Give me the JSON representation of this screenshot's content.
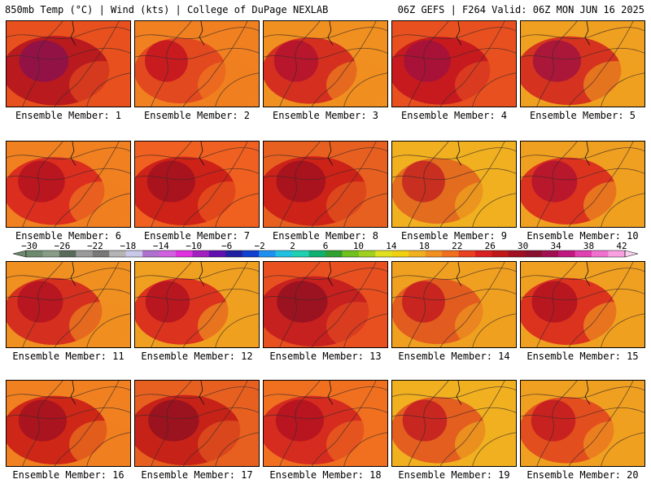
{
  "header": {
    "left": "850mb Temp (°C) | Wind (kts) | College of DuPage NEXLAB",
    "right": "06Z GEFS | F264 Valid: 06Z MON JUN 16 2025"
  },
  "members": [
    {
      "label": "Ensemble Member: 1",
      "base": "#e8501e",
      "hot": "#b0101e",
      "max": "#8a1050",
      "west": 0.55
    },
    {
      "label": "Ensemble Member: 2",
      "base": "#f08020",
      "hot": "#e04020",
      "max": "#c01020",
      "west": 0.3
    },
    {
      "label": "Ensemble Member: 3",
      "base": "#f09020",
      "hot": "#d02020",
      "max": "#b01030",
      "west": 0.35
    },
    {
      "label": "Ensemble Member: 4",
      "base": "#e85020",
      "hot": "#c01020",
      "max": "#a01040",
      "west": 0.45
    },
    {
      "label": "Ensemble Member: 5",
      "base": "#f0a020",
      "hot": "#d02020",
      "max": "#a01040",
      "west": 0.5
    },
    {
      "label": "Ensemble Member: 6",
      "base": "#f08020",
      "hot": "#d82020",
      "max": "#b01020",
      "west": 0.45
    },
    {
      "label": "Ensemble Member: 7",
      "base": "#f06020",
      "hot": "#c81818",
      "max": "#a01020",
      "west": 0.5
    },
    {
      "label": "Ensemble Member: 8",
      "base": "#e86020",
      "hot": "#c81818",
      "max": "#a01020",
      "west": 0.55
    },
    {
      "label": "Ensemble Member: 9",
      "base": "#f0b020",
      "hot": "#e06020",
      "max": "#c02020",
      "west": 0.3
    },
    {
      "label": "Ensemble Member: 10",
      "base": "#f0a020",
      "hot": "#d82020",
      "max": "#b01030",
      "west": 0.4
    },
    {
      "label": "Ensemble Member: 11",
      "base": "#f09020",
      "hot": "#d02020",
      "max": "#b01020",
      "west": 0.4
    },
    {
      "label": "Ensemble Member: 12",
      "base": "#f0a020",
      "hot": "#d82020",
      "max": "#b01020",
      "west": 0.35
    },
    {
      "label": "Ensemble Member: 13",
      "base": "#e85020",
      "hot": "#c01820",
      "max": "#901020",
      "west": 0.6
    },
    {
      "label": "Ensemble Member: 14",
      "base": "#f0a020",
      "hot": "#e05020",
      "max": "#c01820",
      "west": 0.3
    },
    {
      "label": "Ensemble Member: 15",
      "base": "#f0a020",
      "hot": "#d82020",
      "max": "#b01020",
      "west": 0.4
    },
    {
      "label": "Ensemble Member: 16",
      "base": "#f08020",
      "hot": "#c81818",
      "max": "#a01020",
      "west": 0.5
    },
    {
      "label": "Ensemble Member: 17",
      "base": "#e86020",
      "hot": "#c01818",
      "max": "#901020",
      "west": 0.6
    },
    {
      "label": "Ensemble Member: 18",
      "base": "#f07020",
      "hot": "#d02020",
      "max": "#b01020",
      "west": 0.5
    },
    {
      "label": "Ensemble Member: 19",
      "base": "#f0b020",
      "hot": "#e05020",
      "max": "#c01820",
      "west": 0.35
    },
    {
      "label": "Ensemble Member: 20",
      "base": "#f0a020",
      "hot": "#e04020",
      "max": "#c01820",
      "west": 0.35
    }
  ],
  "colorbar": {
    "labels": [
      "−30",
      "−26",
      "−22",
      "−18",
      "−14",
      "−10",
      "−6",
      "−2",
      "2",
      "6",
      "10",
      "14",
      "18",
      "22",
      "26",
      "30",
      "34",
      "38",
      "42"
    ],
    "colors": [
      "#6e8a6e",
      "#889c88",
      "#5a6a5a",
      "#9a9a9a",
      "#787878",
      "#b4b4b4",
      "#c8c8e8",
      "#b070d0",
      "#d060e0",
      "#e030e0",
      "#a020c0",
      "#6010b0",
      "#2020a0",
      "#1040d0",
      "#2090f0",
      "#20c0e0",
      "#20d0b0",
      "#10b070",
      "#30a030",
      "#70c020",
      "#a0d020",
      "#e0e020",
      "#f0d010",
      "#f0b020",
      "#f09020",
      "#f07020",
      "#e84020",
      "#d82020",
      "#c01818",
      "#a01020",
      "#8a1030",
      "#a01050",
      "#c01880",
      "#e040b0",
      "#f070d0",
      "#f8a0e0"
    ]
  }
}
